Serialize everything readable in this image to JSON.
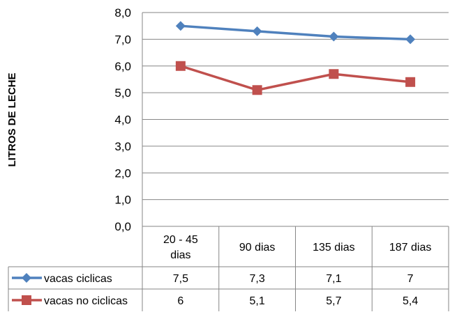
{
  "chart_data": {
    "type": "line",
    "title": "",
    "xlabel": "",
    "ylabel": "LITROS DE LECHE",
    "categories": [
      [
        "20 - 45",
        "dias"
      ],
      [
        "90 dias"
      ],
      [
        "135 dias"
      ],
      [
        "187 dias"
      ]
    ],
    "series": [
      {
        "name": "vacas ciclicas",
        "values": [
          7.5,
          7.3,
          7.1,
          7
        ],
        "value_labels": [
          "7,5",
          "7,3",
          "7,1",
          "7"
        ],
        "color": "#4F81BD",
        "marker": "diamond"
      },
      {
        "name": "vacas no ciclicas",
        "values": [
          6,
          5.1,
          5.7,
          5.4
        ],
        "value_labels": [
          "6",
          "5,1",
          "5,7",
          "5,4"
        ],
        "color": "#C0504D",
        "marker": "square"
      }
    ],
    "ylim": [
      0,
      8
    ],
    "yticks": [
      0,
      1,
      2,
      3,
      4,
      5,
      6,
      7,
      8
    ],
    "ytick_labels": [
      "0,0",
      "1,0",
      "2,0",
      "3,0",
      "4,0",
      "5,0",
      "6,0",
      "7,0",
      "8,0"
    ],
    "grid": true,
    "legend": "data-table-left"
  }
}
